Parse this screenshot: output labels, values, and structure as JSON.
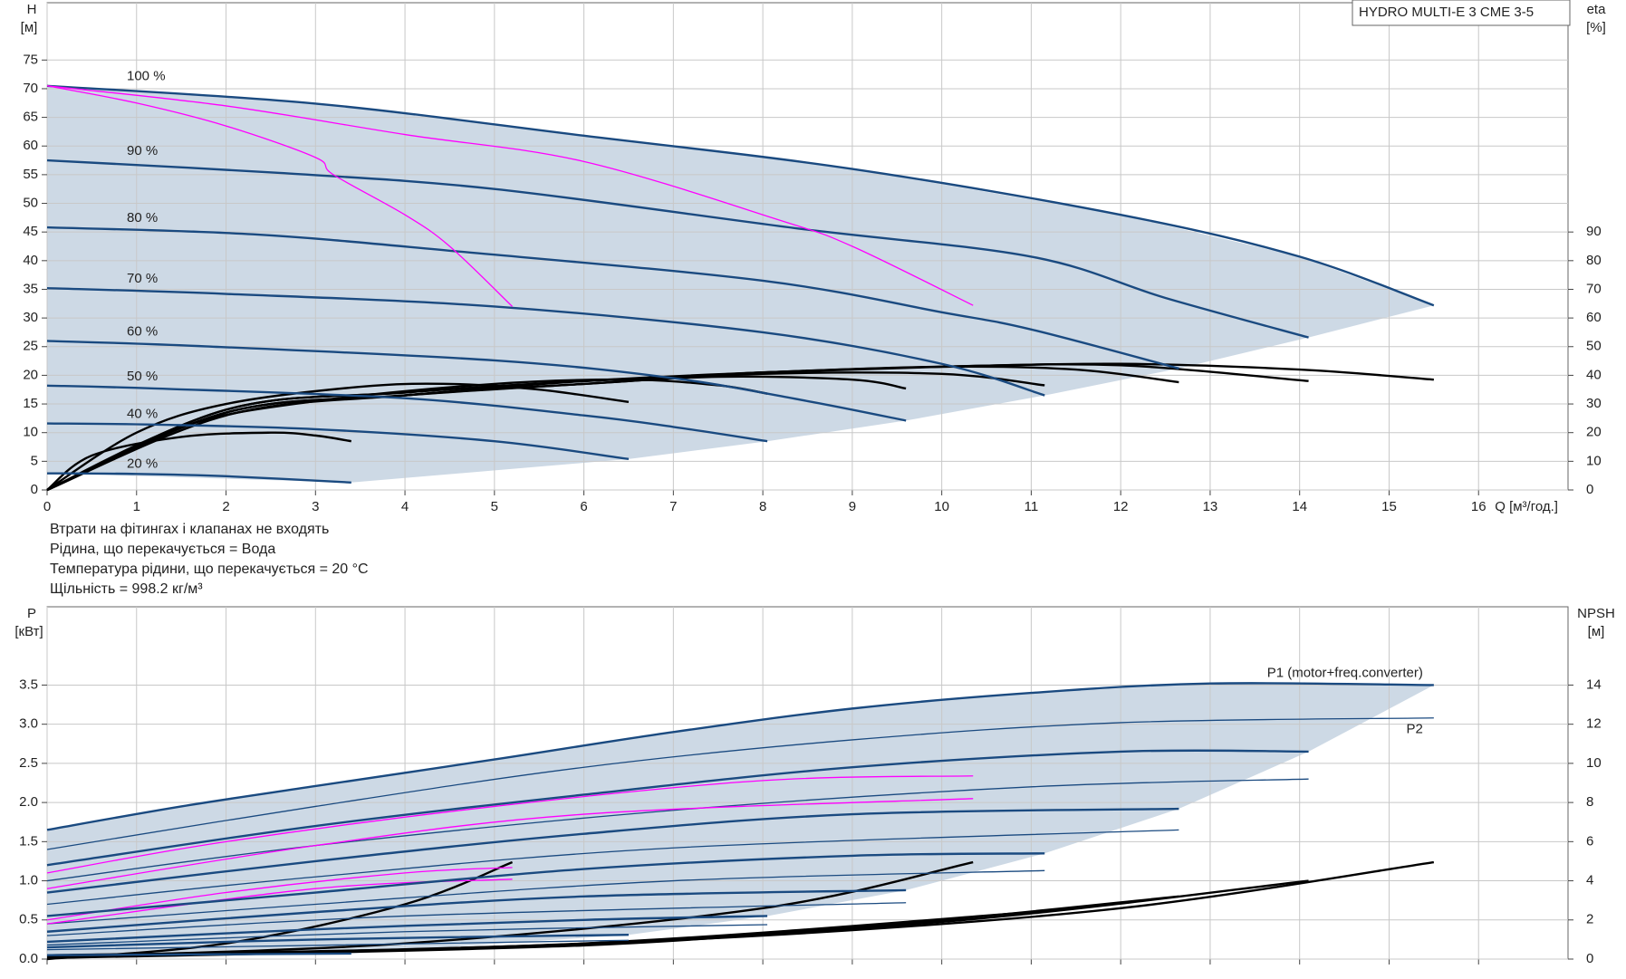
{
  "chart_data": [
    {
      "type": "line",
      "title": "HYDRO MULTI-E 3 CME 3-5",
      "ylabel": "H",
      "ylabel_unit": "[м]",
      "y2label": "eta",
      "y2label_unit": "[%]",
      "xlabel": "Q [м³/год.]",
      "xlim": [
        0,
        17
      ],
      "xticks": [
        0,
        1,
        2,
        3,
        4,
        5,
        6,
        7,
        8,
        9,
        10,
        11,
        12,
        13,
        14,
        15,
        16
      ],
      "ylim": [
        0,
        85
      ],
      "yticks": [
        0,
        5,
        10,
        15,
        20,
        25,
        30,
        35,
        40,
        45,
        50,
        55,
        60,
        65,
        70,
        75
      ],
      "y2lim": [
        0,
        170
      ],
      "y2ticks": [
        0,
        10,
        20,
        30,
        40,
        50,
        60,
        70,
        80,
        90
      ],
      "grid": true,
      "head": [
        {
          "name": "100 %",
          "color": "#1a4a80",
          "x": [
            0,
            3,
            6,
            9,
            12,
            14,
            15.5
          ],
          "values": [
            70.5,
            67.4,
            61.8,
            56,
            48,
            40.7,
            32.2
          ]
        },
        {
          "name": "90 %",
          "color": "#1a4a80",
          "x": [
            0,
            2.6,
            5,
            8.4,
            11,
            12.5,
            14.1
          ],
          "values": [
            57.5,
            55.3,
            52.5,
            45.6,
            40.7,
            33.5,
            26.6
          ]
        },
        {
          "name": "80 %",
          "color": "#1a4a80",
          "x": [
            0,
            2.3,
            4.6,
            8,
            10,
            11,
            12.65
          ],
          "values": [
            45.8,
            44.6,
            41.6,
            36.5,
            31,
            28,
            21.2
          ]
        },
        {
          "name": "70 %",
          "color": "#1a4a80",
          "x": [
            0,
            2,
            5,
            8,
            10,
            11.15
          ],
          "values": [
            35.2,
            34.2,
            32,
            27.5,
            22,
            16.5
          ]
        },
        {
          "name": "60 %",
          "color": "#1a4a80",
          "x": [
            0,
            1.7,
            5,
            7,
            8.5,
            9.6
          ],
          "values": [
            26,
            25.1,
            22.6,
            19.5,
            15.5,
            12.1
          ]
        },
        {
          "name": "50 %",
          "color": "#1a4a80",
          "x": [
            0,
            1.2,
            4,
            6,
            7,
            8.05
          ],
          "values": [
            18.2,
            17.7,
            16,
            13,
            11,
            8.5
          ]
        },
        {
          "name": "40 %",
          "color": "#1a4a80",
          "x": [
            0,
            1.2,
            3,
            5,
            6.5
          ],
          "values": [
            11.6,
            11.4,
            10.6,
            8.5,
            5.4
          ]
        },
        {
          "name": "20 %",
          "color": "#1a4a80",
          "x": [
            0,
            1,
            2,
            3.4
          ],
          "values": [
            2.9,
            2.8,
            2.4,
            1.3
          ]
        }
      ],
      "head_extra": [
        {
          "color": "#ff00ff",
          "x": [
            0,
            1,
            2,
            3,
            3.2,
            4,
            4.5,
            5.2
          ],
          "values": [
            70.5,
            67.5,
            63.5,
            58,
            55,
            48,
            42.5,
            32
          ]
        },
        {
          "color": "#ff00ff",
          "x": [
            0,
            2,
            4,
            6,
            8.2,
            9,
            10.35
          ],
          "values": [
            70.5,
            67,
            62,
            57.3,
            47,
            42.5,
            32.2
          ]
        }
      ],
      "eta": [
        {
          "color": "#000000",
          "axis": "y2",
          "x": [
            0,
            2,
            4,
            6,
            8,
            10,
            12,
            14,
            15.5
          ],
          "values": [
            0,
            28,
            34,
            38,
            41,
            43,
            44,
            42,
            38.5
          ]
        },
        {
          "color": "#000000",
          "axis": "y2",
          "x": [
            0,
            2,
            4,
            6,
            8,
            10,
            12,
            14.1
          ],
          "values": [
            0,
            28,
            34,
            38,
            41,
            43,
            43.5,
            38
          ]
        },
        {
          "color": "#000000",
          "axis": "y2",
          "x": [
            0,
            2,
            4,
            6,
            8,
            10,
            11.5,
            12.65
          ],
          "values": [
            0,
            27,
            33,
            38,
            41,
            43,
            42,
            37.6
          ]
        },
        {
          "color": "#000000",
          "axis": "y2",
          "x": [
            0,
            2,
            4,
            6,
            8,
            10,
            11.15
          ],
          "values": [
            0,
            27,
            33,
            37,
            40.5,
            40.5,
            36.5
          ]
        },
        {
          "color": "#000000",
          "axis": "y2",
          "x": [
            0,
            2,
            4,
            6,
            7.5,
            9,
            9.6
          ],
          "values": [
            0,
            26,
            33,
            37,
            39.5,
            38.5,
            35.4
          ]
        },
        {
          "color": "#000000",
          "axis": "y2",
          "x": [
            0,
            1.5,
            3,
            5,
            6.5,
            7.5,
            8.05
          ],
          "values": [
            0,
            22,
            31,
            37,
            38.5,
            36.5,
            33.6
          ]
        },
        {
          "color": "#000000",
          "axis": "y2",
          "x": [
            0,
            1,
            2,
            3.5,
            4.5,
            5.5,
            6.5
          ],
          "values": [
            0,
            20,
            30,
            36,
            37,
            35,
            30.7
          ]
        },
        {
          "color": "#000000",
          "axis": "y2",
          "x": [
            0,
            0.5,
            1.5,
            2.5,
            3,
            3.4
          ],
          "values": [
            0,
            12,
            18.5,
            20,
            19,
            17
          ]
        }
      ],
      "notes": [
        "Втрати на фітингах і клапанах не входять",
        "Рідина, що перекачується = Вода",
        "Температура рідини, що перекачується = 20 °C",
        "Щільність = 998.2 кг/м³"
      ]
    },
    {
      "type": "line",
      "ylabel": "P",
      "ylabel_unit": "[кВт]",
      "y2label": "NPSH",
      "y2label_unit": "[м]",
      "xlim": [
        0,
        17
      ],
      "xticks": [
        0,
        1,
        2,
        3,
        4,
        5,
        6,
        7,
        8,
        9,
        10,
        11,
        12,
        13,
        14,
        15,
        16
      ],
      "ylim": [
        0,
        4.5
      ],
      "yticks": [
        {
          "value": 0,
          "label": "0.0"
        },
        0.5,
        {
          "value": 1,
          "label": "1.0"
        },
        1.5,
        {
          "value": 2,
          "label": "2.0"
        },
        2.5,
        {
          "value": 3,
          "label": "3.0"
        },
        3.5
      ],
      "y2lim": [
        0,
        18
      ],
      "y2ticks": [
        0,
        2,
        4,
        6,
        8,
        10,
        12,
        14
      ],
      "grid": true,
      "p1": [
        {
          "name": "P1 (motor+freq.converter)",
          "color": "#1a4a80",
          "x": [
            0,
            1.5,
            3,
            5,
            7,
            9,
            11,
            13,
            15.5
          ],
          "values": [
            1.65,
            1.95,
            2.21,
            2.55,
            2.9,
            3.2,
            3.4,
            3.52,
            3.5
          ]
        },
        {
          "color": "#1a4a80",
          "x": [
            0,
            3,
            6,
            9,
            12,
            14.1
          ],
          "values": [
            1.2,
            1.7,
            2.1,
            2.45,
            2.65,
            2.65
          ]
        },
        {
          "color": "#1a4a80",
          "x": [
            0,
            3,
            6,
            9,
            12.65
          ],
          "values": [
            0.85,
            1.25,
            1.6,
            1.85,
            1.92
          ]
        },
        {
          "color": "#1a4a80",
          "x": [
            0,
            3,
            6,
            9,
            11.15
          ],
          "values": [
            0.55,
            0.85,
            1.15,
            1.32,
            1.35
          ]
        },
        {
          "color": "#1a4a80",
          "x": [
            0,
            3,
            6,
            9.6
          ],
          "values": [
            0.35,
            0.6,
            0.8,
            0.88
          ]
        },
        {
          "color": "#1a4a80",
          "x": [
            0,
            3,
            6,
            8.05
          ],
          "values": [
            0.22,
            0.38,
            0.5,
            0.55
          ]
        },
        {
          "color": "#1a4a80",
          "x": [
            0,
            3,
            6.5
          ],
          "values": [
            0.15,
            0.25,
            0.31
          ]
        },
        {
          "color": "#1a4a80",
          "x": [
            0,
            3.4
          ],
          "values": [
            0.05,
            0.07
          ]
        }
      ],
      "p2": [
        {
          "name": "P2",
          "color": "#1a4a80",
          "x": [
            0,
            3,
            6,
            9,
            12,
            15.5
          ],
          "values": [
            1.4,
            1.95,
            2.45,
            2.8,
            3.02,
            3.08
          ]
        },
        {
          "color": "#1a4a80",
          "x": [
            0,
            3,
            7,
            11,
            14.1
          ],
          "values": [
            1.0,
            1.45,
            1.9,
            2.2,
            2.3
          ]
        },
        {
          "color": "#1a4a80",
          "x": [
            0,
            3,
            7,
            12.65
          ],
          "values": [
            0.7,
            1.05,
            1.42,
            1.65
          ]
        },
        {
          "color": "#1a4a80",
          "x": [
            0,
            3,
            7,
            11.15
          ],
          "values": [
            0.45,
            0.7,
            1.0,
            1.13
          ]
        },
        {
          "color": "#1a4a80",
          "x": [
            0,
            4,
            9.6
          ],
          "values": [
            0.3,
            0.55,
            0.72
          ]
        },
        {
          "color": "#1a4a80",
          "x": [
            0,
            4,
            8.05
          ],
          "values": [
            0.18,
            0.35,
            0.44
          ]
        },
        {
          "color": "#1a4a80",
          "x": [
            0,
            6.5
          ],
          "values": [
            0.12,
            0.24
          ]
        }
      ],
      "p_extra": [
        {
          "color": "#ff00ff",
          "x": [
            0,
            2,
            5,
            8,
            10.35
          ],
          "values": [
            1.1,
            1.5,
            1.95,
            2.28,
            2.34
          ]
        },
        {
          "color": "#ff00ff",
          "x": [
            0,
            3,
            6,
            10.35
          ],
          "values": [
            0.9,
            1.45,
            1.85,
            2.05
          ]
        },
        {
          "color": "#ff00ff",
          "x": [
            0,
            2,
            4,
            5.2
          ],
          "values": [
            0.5,
            0.85,
            1.1,
            1.17
          ]
        },
        {
          "color": "#ff00ff",
          "x": [
            0,
            3,
            5.2
          ],
          "values": [
            0.45,
            0.9,
            1.02
          ]
        }
      ],
      "npsh": [
        {
          "color": "#000000",
          "axis": "y2",
          "x": [
            0,
            4,
            8,
            12,
            15.5
          ],
          "values": [
            0.2,
            0.5,
            1.2,
            2.6,
            4.95
          ]
        },
        {
          "color": "#000000",
          "axis": "y2",
          "x": [
            0,
            5,
            10,
            14.1
          ],
          "values": [
            0.15,
            0.6,
            1.9,
            4.0
          ]
        },
        {
          "color": "#000000",
          "axis": "y2",
          "x": [
            0,
            5,
            9,
            12.65
          ],
          "values": [
            0.1,
            0.6,
            1.6,
            3.2
          ]
        },
        {
          "color": "#000000",
          "axis": "y2",
          "x": [
            0,
            6,
            11.15
          ],
          "values": [
            0.1,
            0.8,
            2.45
          ]
        },
        {
          "color": "#000000",
          "axis": "y2",
          "x": [
            0,
            6,
            9.6
          ],
          "values": [
            0.05,
            0.7,
            1.86
          ]
        },
        {
          "color": "#000000",
          "axis": "y2",
          "x": [
            0,
            4,
            8,
            10.35
          ],
          "values": [
            0.1,
            0.8,
            2.6,
            4.95
          ]
        },
        {
          "color": "#000000",
          "axis": "y2",
          "x": [
            0,
            2,
            4,
            5.2
          ],
          "values": [
            0,
            0.8,
            2.8,
            4.95
          ]
        }
      ]
    }
  ]
}
